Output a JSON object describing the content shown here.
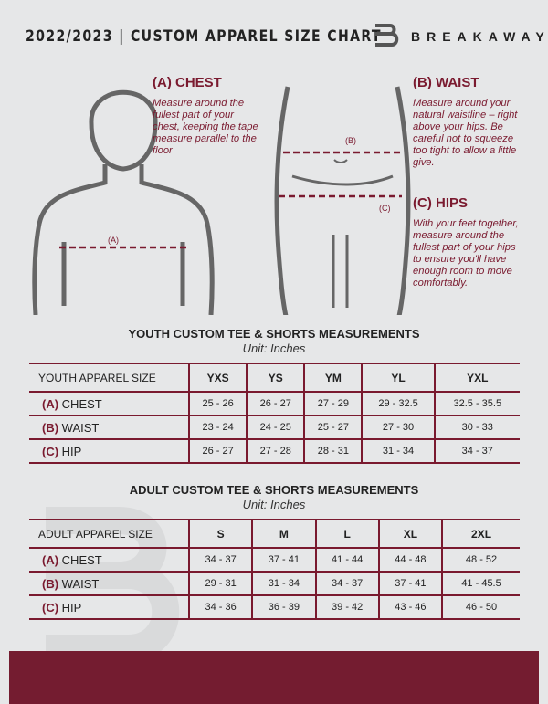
{
  "header": {
    "title": "2022/2023  |  CUSTOM APPAREL SIZE CHART",
    "brand": "BREAKAWAY"
  },
  "measures": {
    "chest": {
      "heading": "(A) CHEST",
      "text": "Measure around the fullest part of your chest, keeping the tape measure parallel to the floor",
      "marker": "(A)"
    },
    "waist": {
      "heading": "(B) WAIST",
      "text": "Measure around your natural waistline – right above your hips. Be careful not to squeeze too tight to allow a little give.",
      "marker": "(B)"
    },
    "hips": {
      "heading": "(C) HIPS",
      "text": "With your feet together, measure around the fullest part of your hips to ensure you'll have enough room to move comfortably.",
      "marker": "(C)"
    }
  },
  "youth": {
    "title": "YOUTH CUSTOM TEE & SHORTS MEASUREMENTS",
    "unit": "Unit: Inches",
    "header": "YOUTH APPAREL SIZE",
    "sizes": [
      "YXS",
      "YS",
      "YM",
      "YL",
      "YXL"
    ],
    "rows": [
      {
        "code": "(A)",
        "label": "CHEST",
        "values": [
          "25 - 26",
          "26 - 27",
          "27 - 29",
          "29 - 32.5",
          "32.5 - 35.5"
        ]
      },
      {
        "code": "(B)",
        "label": "WAIST",
        "values": [
          "23 - 24",
          "24 - 25",
          "25 - 27",
          "27 - 30",
          "30 - 33"
        ]
      },
      {
        "code": "(C)",
        "label": "HIP",
        "values": [
          "26 - 27",
          "27 - 28",
          "28 - 31",
          "31 - 34",
          "34 - 37"
        ]
      }
    ]
  },
  "adult": {
    "title": "ADULT CUSTOM TEE & SHORTS MEASUREMENTS",
    "unit": "Unit: Inches",
    "header": "ADULT APPAREL SIZE",
    "sizes": [
      "S",
      "M",
      "L",
      "XL",
      "2XL"
    ],
    "rows": [
      {
        "code": "(A)",
        "label": "CHEST",
        "values": [
          "34 - 37",
          "37 - 41",
          "41 - 44",
          "44 - 48",
          "48 - 52"
        ]
      },
      {
        "code": "(B)",
        "label": "WAIST",
        "values": [
          "29 - 31",
          "31 - 34",
          "34 - 37",
          "37 - 41",
          "41 - 45.5"
        ]
      },
      {
        "code": "(C)",
        "label": "HIP",
        "values": [
          "34 - 36",
          "36 - 39",
          "39 - 42",
          "43 - 46",
          "46 - 50"
        ]
      }
    ]
  },
  "colors": {
    "accent": "#7a1a2f",
    "background": "#e6e7e8"
  }
}
